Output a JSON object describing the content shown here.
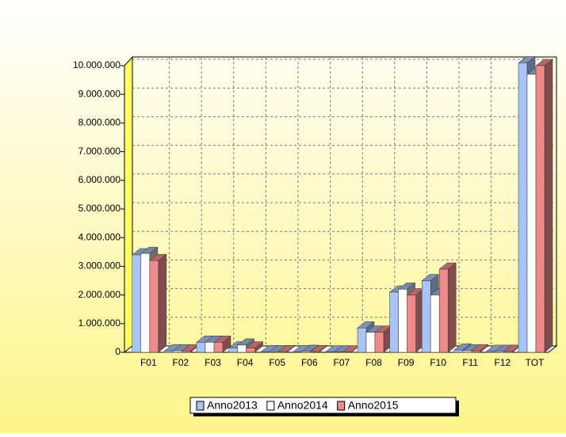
{
  "chart_data": {
    "type": "bar3d",
    "categories": [
      "F01",
      "F02",
      "F03",
      "F04",
      "F05",
      "F06",
      "F07",
      "F08",
      "F09",
      "F10",
      "F11",
      "F12",
      "TOT"
    ],
    "series": [
      {
        "name": "Anno2013",
        "color": "#a9c3f2",
        "values": [
          3400000,
          50000,
          350000,
          150000,
          20000,
          20000,
          10000,
          850000,
          2100000,
          2500000,
          80000,
          30000,
          10100000
        ]
      },
      {
        "name": "Anno2014",
        "color": "#ffffff",
        "values": [
          3450000,
          50000,
          350000,
          250000,
          20000,
          30000,
          10000,
          700000,
          2200000,
          2000000,
          50000,
          30000,
          9700000
        ]
      },
      {
        "name": "Anno2015",
        "color": "#ee8a8a",
        "values": [
          3200000,
          50000,
          350000,
          150000,
          20000,
          20000,
          10000,
          700000,
          2000000,
          2900000,
          50000,
          30000,
          10000000
        ]
      }
    ],
    "ylim": [
      0,
      10000000
    ],
    "yticks": [
      0,
      {
        "value": 1000000,
        "label": "1.000.000"
      },
      {
        "value": 2000000,
        "label": "2.000.000"
      },
      {
        "value": 3000000,
        "label": "3.000.000"
      },
      {
        "value": 4000000,
        "label": "4.000.000"
      },
      {
        "value": 5000000,
        "label": "5.000.000"
      },
      {
        "value": 6000000,
        "label": "6.000.000"
      },
      {
        "value": 7000000,
        "label": "7.000.000"
      },
      {
        "value": 8000000,
        "label": "8.000.000"
      },
      {
        "value": 9000000,
        "label": "9.000.000"
      },
      {
        "value": 10000000,
        "label": "10.000.000"
      }
    ],
    "grid": true,
    "legend": "bottom"
  }
}
